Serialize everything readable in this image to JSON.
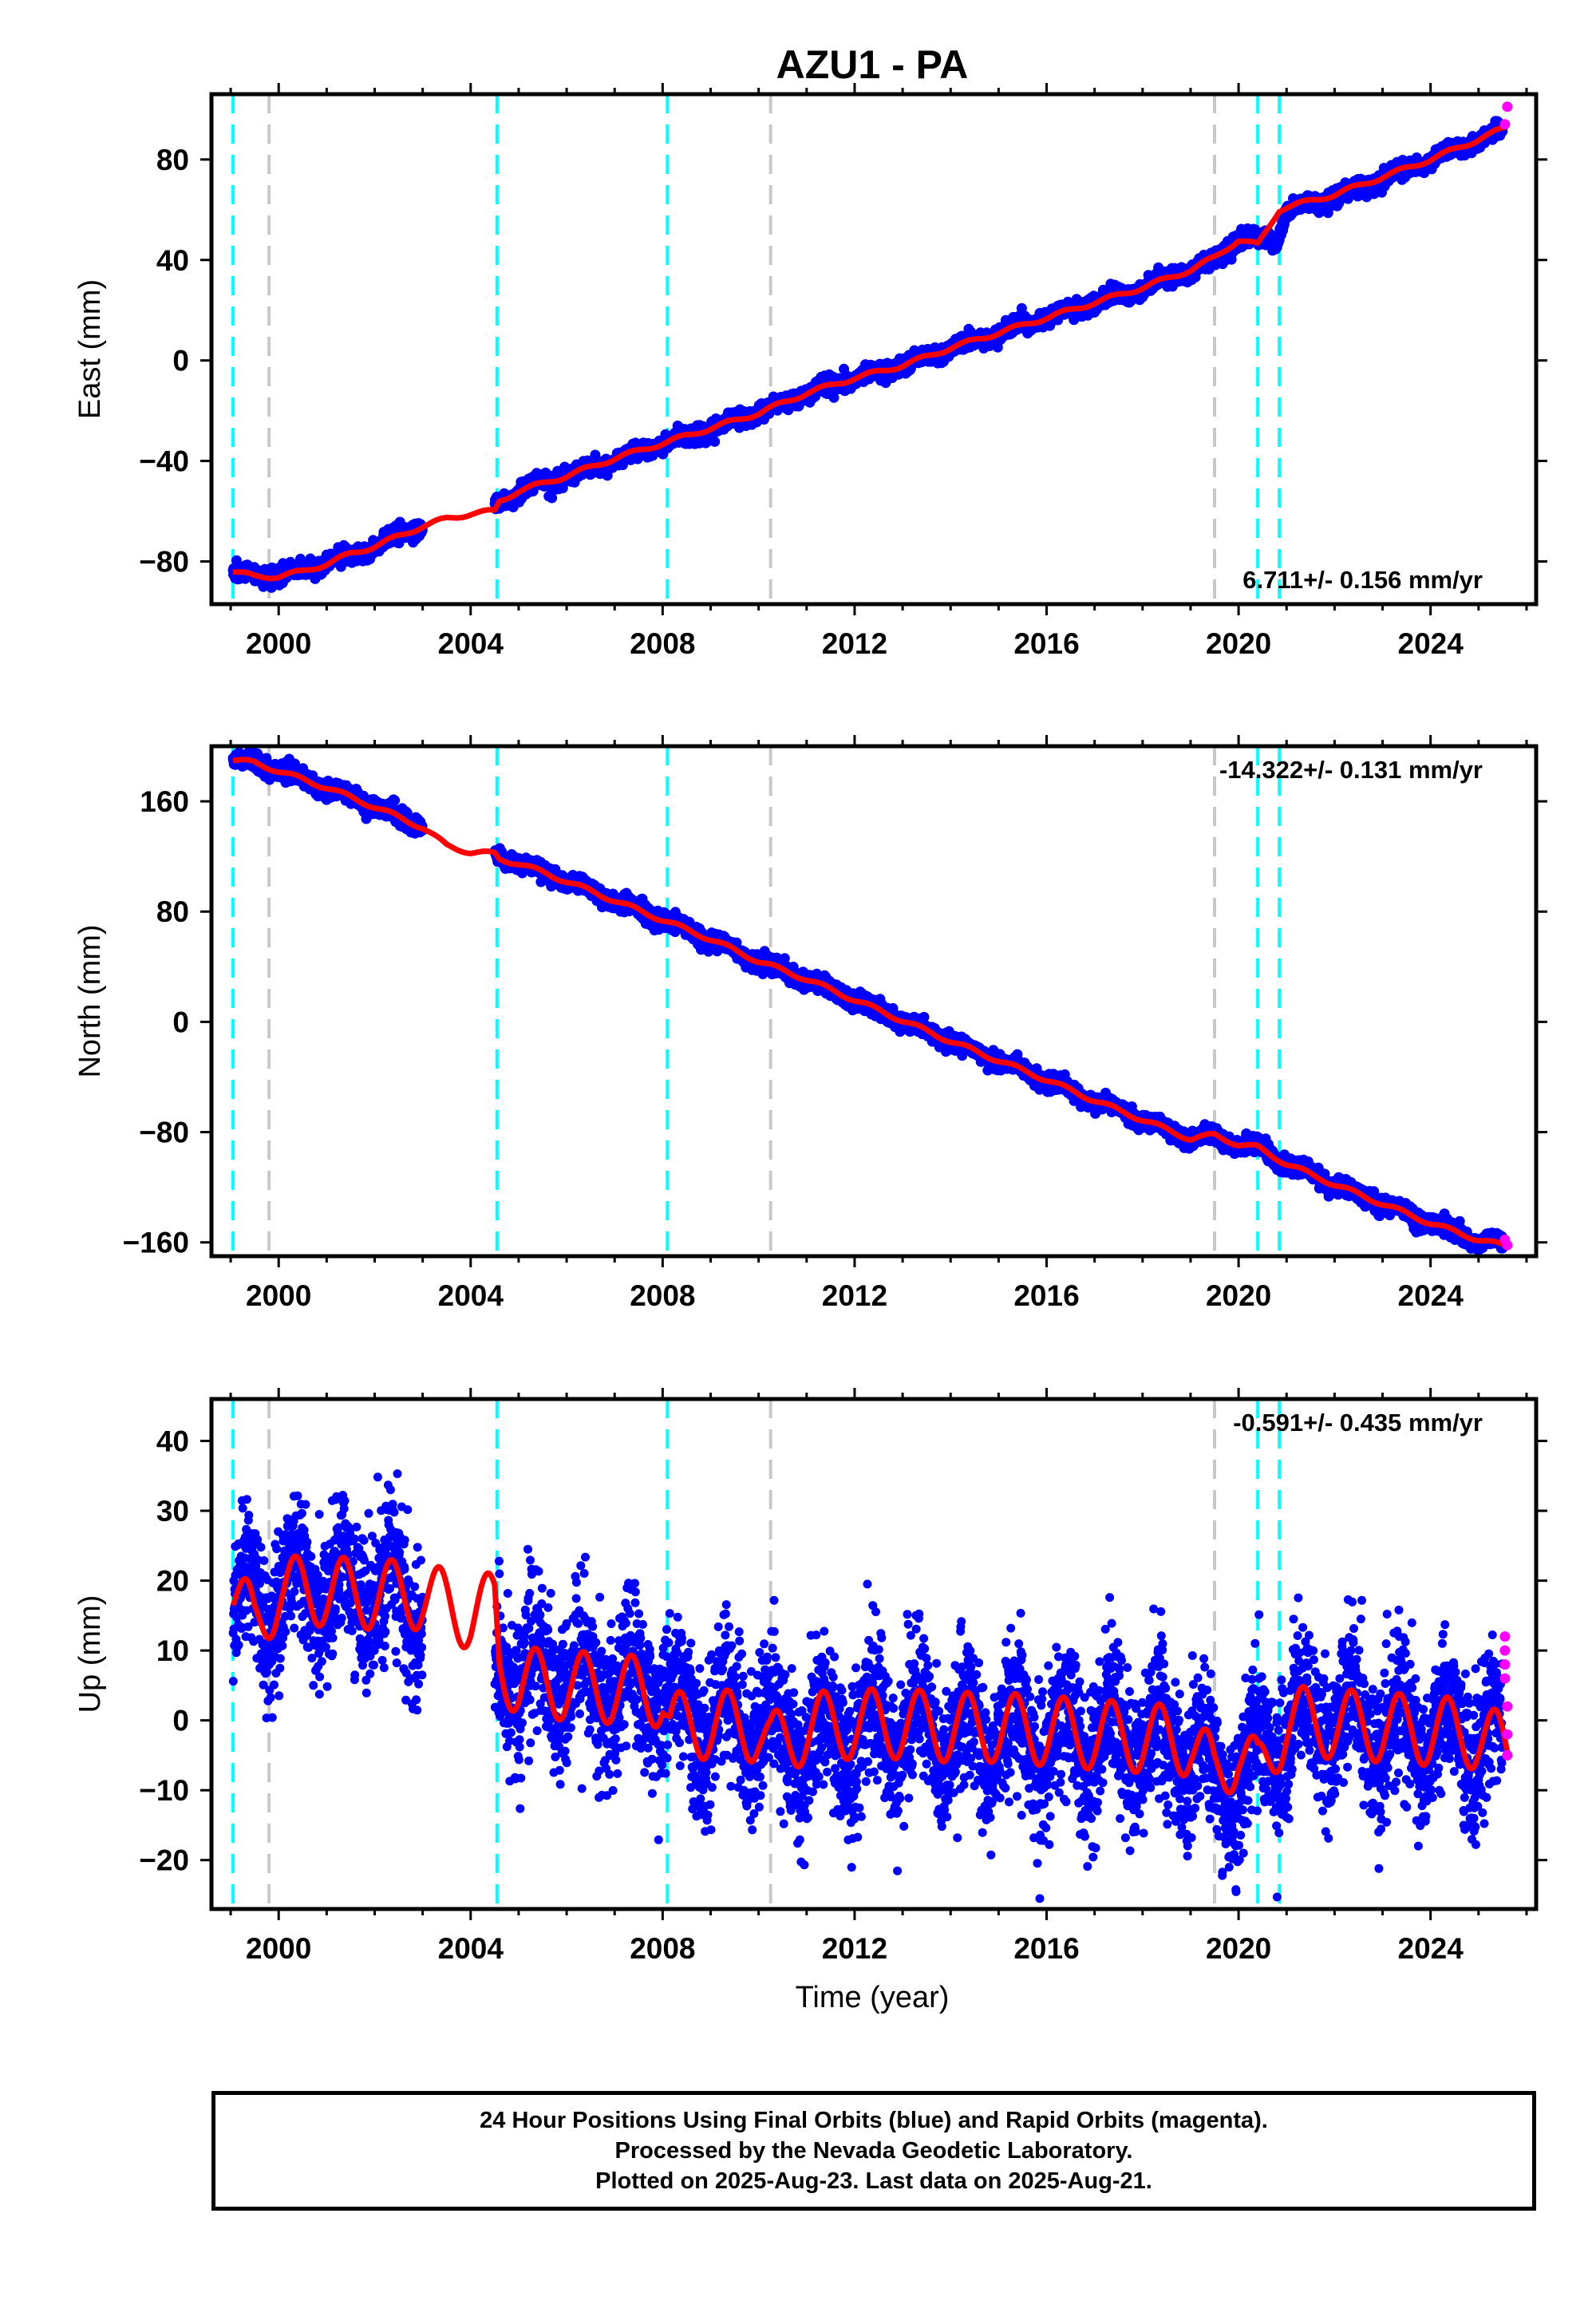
{
  "title": "AZU1 - PA",
  "xlabel": "Time (year)",
  "x_ticks": [
    "2000",
    "2004",
    "2008",
    "2012",
    "2016",
    "2020",
    "2024"
  ],
  "colors": {
    "final_orbits": "#0000ff",
    "rapid_orbits": "#ff00ff",
    "model_fit": "#ff0000",
    "equipment_change": "#00ffff",
    "other_event": "#c8c8c8",
    "frame": "#000000"
  },
  "footer": {
    "line1": "24 Hour Positions Using Final Orbits (blue) and Rapid Orbits (magenta).",
    "line2": "Processed by the Nevada Geodetic Laboratory.",
    "line3": "Plotted on 2025-Aug-23. Last data on 2025-Aug-21."
  },
  "chart_data": [
    {
      "type": "scatter",
      "panel": "east",
      "ylabel": "East (mm)",
      "rate_label": "6.711+/- 0.156 mm/yr",
      "rate_position": "bottom-right",
      "xlim": [
        1998.6,
        2026.2
      ],
      "ylim": [
        -97,
        106
      ],
      "y_ticks": [
        "80",
        "40",
        "0",
        "−40",
        "−80"
      ],
      "y_tick_values": [
        80,
        40,
        0,
        -40,
        -80
      ],
      "cyan_event_lines": [
        1999.05,
        2004.55,
        2008.1,
        2020.4,
        2020.85
      ],
      "gray_event_lines": [
        1999.8,
        2010.25,
        2019.5
      ],
      "data_gap": [
        2003.0,
        2004.5
      ],
      "final_series": {
        "name": "Final Orbits",
        "x": [
          1999.05,
          1999.5,
          2000.0,
          2000.5,
          2001.0,
          2001.5,
          2002.0,
          2002.5,
          2003.0,
          2004.6,
          2005.0,
          2006.0,
          2007.0,
          2008.0,
          2009.0,
          2010.0,
          2011.0,
          2012.0,
          2013.0,
          2014.0,
          2015.0,
          2016.0,
          2017.0,
          2018.0,
          2019.0,
          2019.5,
          2020.0,
          2020.4,
          2020.8,
          2021.0,
          2022.0,
          2023.0,
          2024.0,
          2025.0,
          2025.5
        ],
        "y": [
          -84,
          -86,
          -86,
          -83,
          -80,
          -78,
          -74,
          -70,
          -66,
          -57,
          -52,
          -46,
          -40,
          -33,
          -27,
          -21,
          -13,
          -7,
          -2,
          5,
          11,
          17,
          23,
          29,
          36,
          40,
          49,
          48,
          47,
          60,
          65,
          72,
          80,
          88,
          91
        ]
      },
      "rapid_series": {
        "name": "Rapid Orbits",
        "x": [
          2025.55,
          2025.6
        ],
        "y": [
          94,
          101
        ]
      },
      "model_series": {
        "name": "Model fit",
        "x": [
          1999.05,
          1999.5,
          2000.0,
          2000.5,
          2001.0,
          2001.5,
          2002.0,
          2002.5,
          2003.0,
          2003.5,
          2004.0,
          2004.5,
          2004.6,
          2005.0,
          2006.0,
          2007.0,
          2008.0,
          2009.0,
          2010.0,
          2011.0,
          2012.0,
          2013.0,
          2014.0,
          2015.0,
          2016.0,
          2017.0,
          2018.0,
          2019.0,
          2019.5,
          2020.0,
          2020.4,
          2020.85,
          2021.0,
          2022.0,
          2023.0,
          2024.0,
          2025.0,
          2025.6
        ],
        "y": [
          -84,
          -86,
          -86,
          -84,
          -81,
          -77,
          -74,
          -70,
          -66,
          -63,
          -61,
          -60,
          -56,
          -52,
          -46,
          -39,
          -33,
          -27,
          -21,
          -13,
          -7,
          -2,
          5,
          11,
          17,
          23,
          29,
          36,
          41,
          48,
          46,
          60,
          61,
          66,
          73,
          80,
          88,
          93
        ]
      }
    },
    {
      "type": "scatter",
      "panel": "north",
      "ylabel": "North (mm)",
      "rate_label": "-14.322+/- 0.131 mm/yr",
      "rate_position": "top-right",
      "xlim": [
        1998.6,
        2026.2
      ],
      "ylim": [
        -170,
        200
      ],
      "y_ticks": [
        "160",
        "80",
        "0",
        "−80",
        "−160"
      ],
      "y_tick_values": [
        160,
        80,
        0,
        -80,
        -160
      ],
      "cyan_event_lines": [
        1999.05,
        2004.55,
        2008.1,
        2020.4,
        2020.85
      ],
      "gray_event_lines": [
        1999.8,
        2010.25,
        2019.5
      ],
      "data_gap": [
        2003.0,
        2004.5
      ],
      "final_series": {
        "name": "Final Orbits",
        "x": [
          1999.05,
          1999.5,
          2000.0,
          2001.0,
          2002.0,
          2003.0,
          2004.6,
          2005.0,
          2006.0,
          2007.0,
          2008.0,
          2009.0,
          2010.0,
          2011.0,
          2012.0,
          2013.0,
          2014.0,
          2015.0,
          2016.0,
          2017.0,
          2018.0,
          2019.0,
          2019.5,
          2020.0,
          2020.4,
          2021.0,
          2022.0,
          2023.0,
          2024.0,
          2025.0,
          2025.5
        ],
        "y": [
          190,
          188,
          182,
          170,
          156,
          141,
          120,
          116,
          103,
          88,
          74,
          60,
          44,
          31,
          16,
          1,
          -14,
          -28,
          -42,
          -57,
          -71,
          -85,
          -82,
          -89,
          -90,
          -103,
          -118,
          -132,
          -146,
          -158,
          -160
        ]
      },
      "rapid_series": {
        "name": "Rapid Orbits",
        "x": [
          2025.55,
          2025.6
        ],
        "y": [
          -158,
          -162
        ]
      },
      "model_series": {
        "name": "Model fit",
        "x": [
          1999.05,
          1999.5,
          2000.0,
          2001.0,
          2002.0,
          2003.0,
          2003.5,
          2004.0,
          2004.5,
          2004.6,
          2005.0,
          2006.0,
          2007.0,
          2008.0,
          2009.0,
          2010.0,
          2011.0,
          2012.0,
          2013.0,
          2014.0,
          2015.0,
          2016.0,
          2017.0,
          2018.0,
          2019.0,
          2019.5,
          2020.0,
          2020.4,
          2021.0,
          2022.0,
          2023.0,
          2024.0,
          2025.0,
          2025.6
        ],
        "y": [
          190,
          188,
          182,
          170,
          156,
          141,
          128,
          123,
          122,
          118,
          115,
          102,
          88,
          74,
          60,
          44,
          31,
          16,
          1,
          -14,
          -28,
          -42,
          -57,
          -71,
          -85,
          -82,
          -89,
          -91,
          -103,
          -118,
          -132,
          -146,
          -158,
          -163
        ]
      }
    },
    {
      "type": "scatter",
      "panel": "up",
      "ylabel": "Up (mm)",
      "rate_label": "-0.591+/- 0.435 mm/yr",
      "rate_position": "top-right",
      "xlim": [
        1998.6,
        2026.2
      ],
      "ylim": [
        -27,
        46
      ],
      "y_ticks": [
        "40",
        "30",
        "20",
        "10",
        "0",
        "−10",
        "−20"
      ],
      "y_tick_values": [
        40,
        30,
        20,
        10,
        0,
        -10,
        -20
      ],
      "cyan_event_lines": [
        1999.05,
        2004.55,
        2008.1,
        2020.4,
        2020.85
      ],
      "gray_event_lines": [
        1999.8,
        2010.25,
        2019.5
      ],
      "data_gap": [
        2003.0,
        2004.5
      ],
      "seasonal_amplitude_mm": 5,
      "final_series": {
        "name": "Final Orbits",
        "x": [
          1999.05,
          2000.0,
          2001.0,
          2002.0,
          2003.0,
          2004.6,
          2005.0,
          2006.0,
          2007.0,
          2008.0,
          2008.2,
          2009.0,
          2010.0,
          2011.0,
          2012.0,
          2013.0,
          2014.0,
          2015.0,
          2016.0,
          2017.0,
          2018.0,
          2019.0,
          2019.6,
          2020.0,
          2021.0,
          2022.0,
          2023.0,
          2024.0,
          2025.0,
          2025.5
        ],
        "y": [
          16,
          18,
          19,
          18,
          17,
          8,
          7,
          6,
          5,
          4,
          1,
          0,
          -1,
          -3,
          -2,
          -1,
          -2,
          -1,
          -3,
          -2,
          -3,
          -4,
          -9,
          -8,
          -1,
          0,
          -1,
          -2,
          -3,
          -4
        ]
      },
      "rapid_series": {
        "name": "Rapid Orbits",
        "x": [
          2025.55,
          2025.55,
          2025.55,
          2025.55,
          2025.6,
          2025.6,
          2025.6
        ],
        "y": [
          12,
          10,
          8,
          6,
          2,
          -2,
          -5
        ]
      },
      "model_series": {
        "name": "Model fit",
        "x": [
          1999.05,
          1999.5,
          2000.0,
          2001.0,
          2002.0,
          2003.0,
          2004.0,
          2004.5,
          2004.6,
          2005.0,
          2006.0,
          2007.0,
          2008.0,
          2008.15,
          2009.0,
          2010.0,
          2010.25,
          2011.0,
          2012.0,
          2013.0,
          2014.0,
          2015.0,
          2016.0,
          2017.0,
          2018.0,
          2019.0,
          2019.5,
          2020.0,
          2020.4,
          2020.85,
          2021.0,
          2022.0,
          2023.0,
          2024.0,
          2025.0,
          2025.6
        ],
        "y": [
          18,
          13.5,
          18.5,
          18.5,
          18,
          18,
          15,
          16.5,
          8,
          5.5,
          5,
          4.5,
          4,
          -1,
          -0.5,
          -1,
          -4,
          -1,
          -0.5,
          -0.5,
          -1,
          -1,
          -1.5,
          -2,
          -2.5,
          -3,
          -8,
          -4,
          -8,
          -2,
          0,
          -0.5,
          -1,
          -1.5,
          -2,
          -4.5
        ]
      }
    }
  ]
}
